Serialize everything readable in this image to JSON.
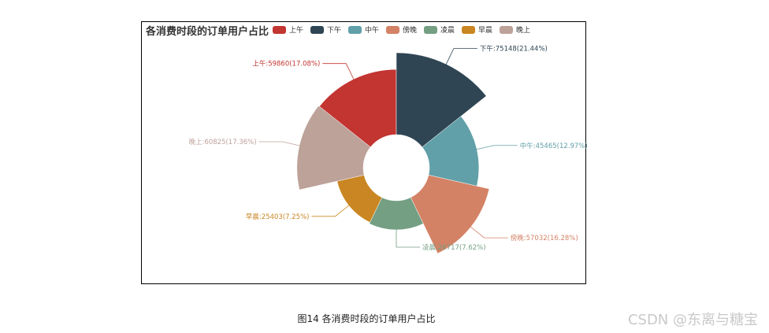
{
  "chart_data": {
    "type": "pie",
    "variant": "nightingale-rose",
    "title": "各消费时段的订单用户占比",
    "categories": [
      "上午",
      "下午",
      "中午",
      "傍晚",
      "凌晨",
      "早晨",
      "晚上"
    ],
    "values": [
      59860,
      75148,
      45465,
      57032,
      26717,
      25403,
      60825
    ],
    "percents": [
      "17.08%",
      "21.44%",
      "12.97%",
      "16.28%",
      "7.62%",
      "7.25%",
      "17.36%"
    ],
    "colors": [
      "#c23531",
      "#2f4554",
      "#61a0a8",
      "#d48265",
      "#749f83",
      "#ca8622",
      "#bda29a"
    ],
    "legend_position": "top",
    "label_format": "{name}:{value}({percent})"
  },
  "caption": "图14 各消费时段的订单用户占比",
  "watermark": "CSDN @东离与糖宝"
}
